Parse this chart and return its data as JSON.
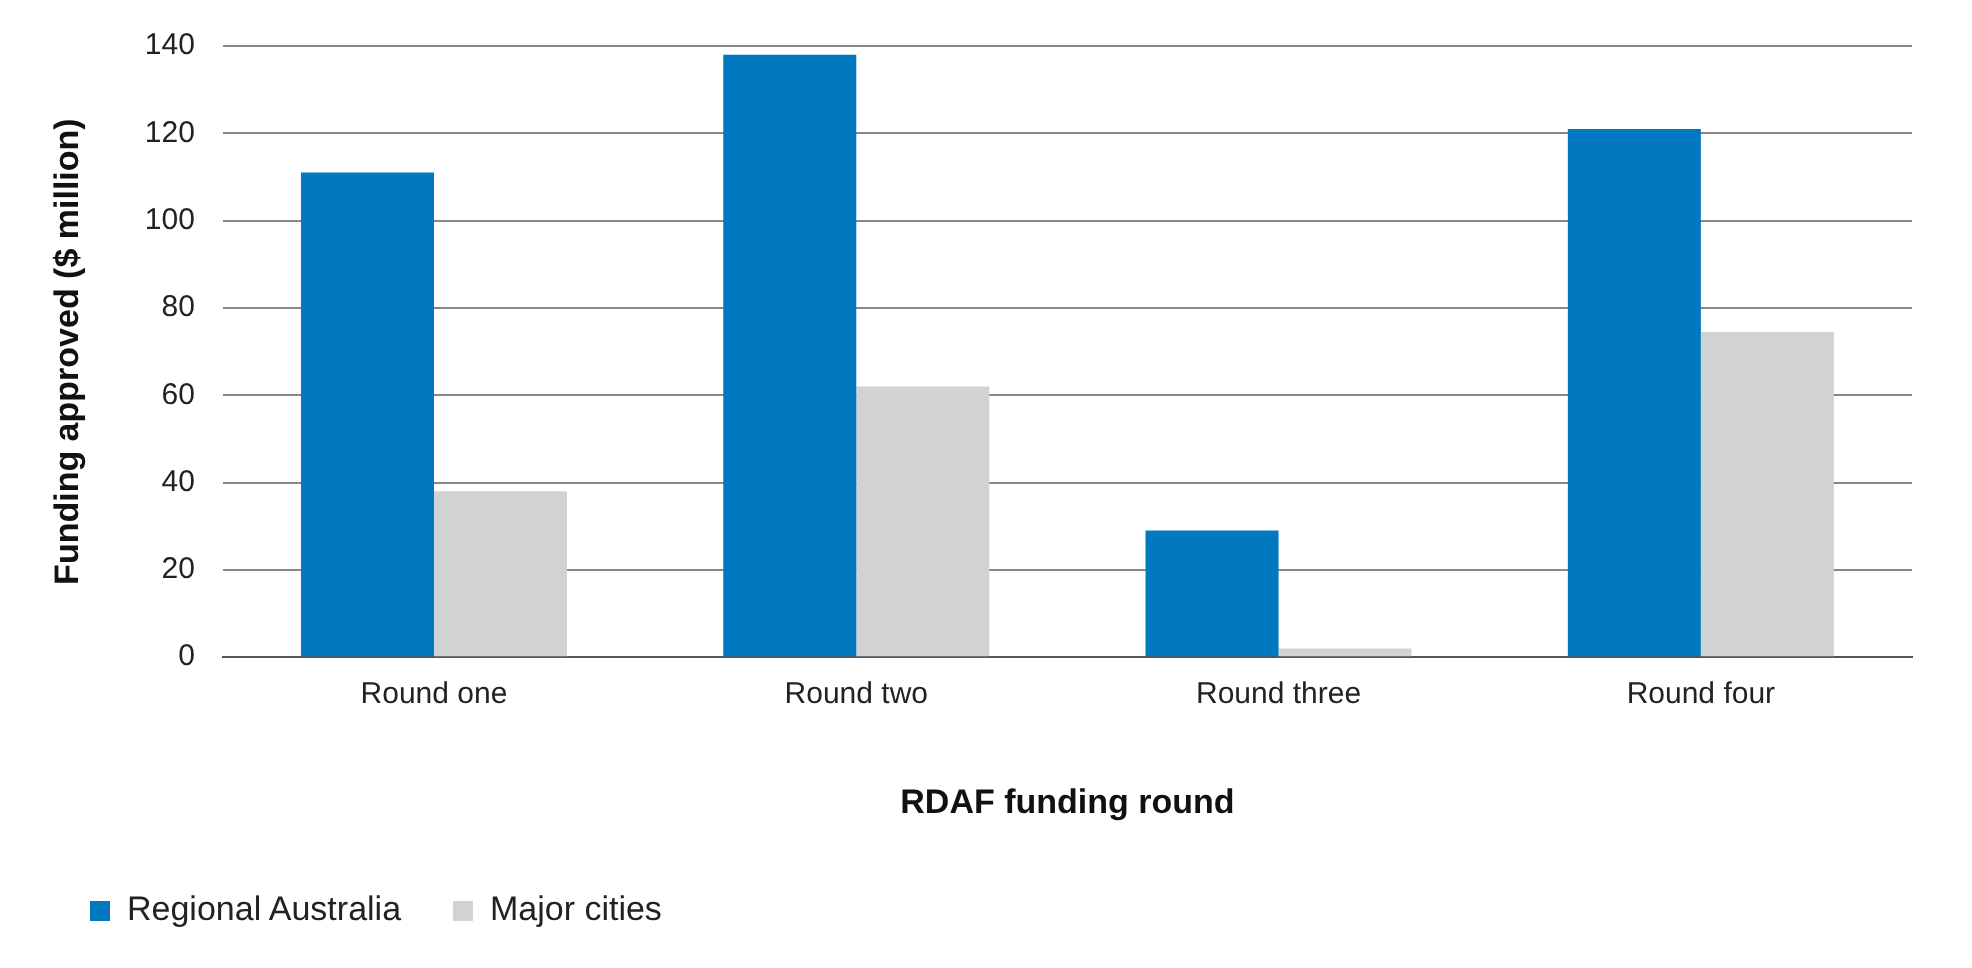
{
  "chart_data": {
    "type": "bar",
    "xlabel": "RDAF funding round",
    "ylabel": "Funding approved ($ million)",
    "categories": [
      "Round one",
      "Round two",
      "Round three",
      "Round four"
    ],
    "series": [
      {
        "name": "Regional Australia",
        "color": "#0079c1",
        "values": [
          111,
          138,
          29,
          121
        ]
      },
      {
        "name": "Major cities",
        "color": "#d1d2d4",
        "values": [
          38,
          62,
          2,
          74.5
        ]
      }
    ],
    "ylim": [
      0,
      140
    ],
    "yticks": [
      0,
      20,
      40,
      60,
      80,
      100,
      120,
      140
    ],
    "grid": "y",
    "legend": "bottom left"
  }
}
